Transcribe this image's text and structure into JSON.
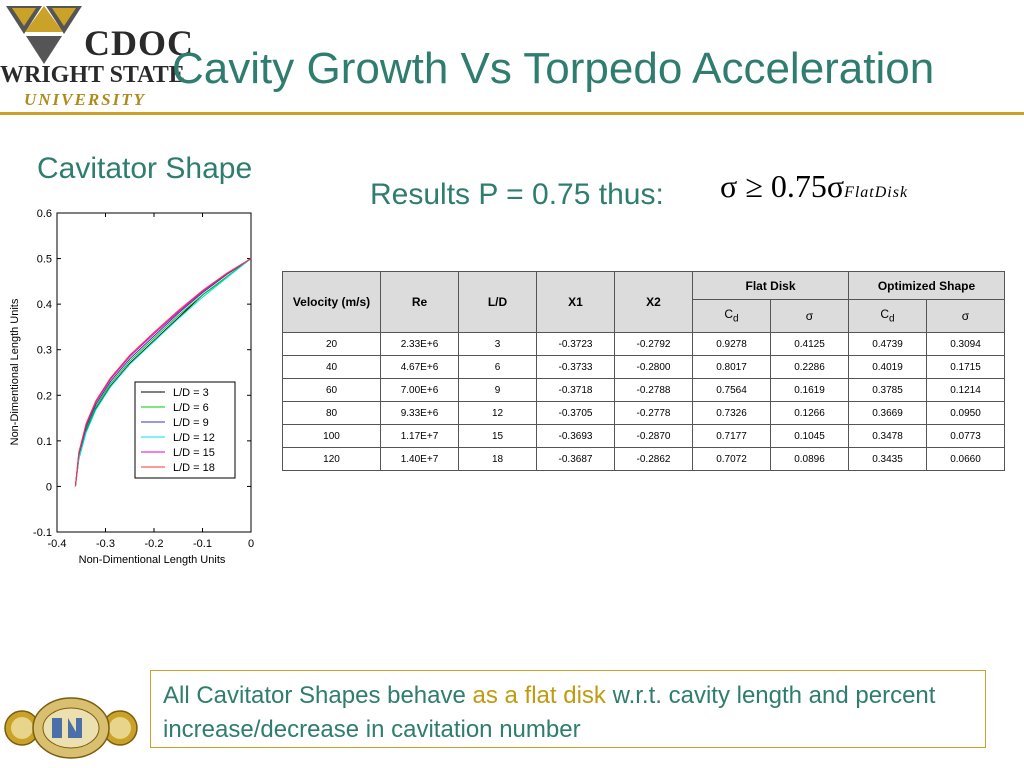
{
  "header": {
    "logo_top": "CDOC",
    "logo_middle": "WRIGHT STATE",
    "logo_bottom": "UNIVERSITY",
    "title": "Cavity Growth Vs Torpedo Acceleration"
  },
  "left": {
    "subhead": "Cavitator Shape"
  },
  "results": {
    "label": "Results P = 0.75 thus:",
    "formula_main": "σ  ≥  0.75σ",
    "formula_sub": "FlatDisk"
  },
  "table": {
    "headers": {
      "velocity": "Velocity (m/s)",
      "re": "Re",
      "ld": "L/D",
      "x1": "X1",
      "x2": "X2",
      "flat_disk": "Flat Disk",
      "optimized": "Optimized Shape",
      "cd_main": "C",
      "cd_sub": "d",
      "sigma": "σ"
    },
    "rows": [
      [
        "20",
        "2.33E+6",
        "3",
        "-0.3723",
        "-0.2792",
        "0.9278",
        "0.4125",
        "0.4739",
        "0.3094"
      ],
      [
        "40",
        "4.67E+6",
        "6",
        "-0.3733",
        "-0.2800",
        "0.8017",
        "0.2286",
        "0.4019",
        "0.1715"
      ],
      [
        "60",
        "7.00E+6",
        "9",
        "-0.3718",
        "-0.2788",
        "0.7564",
        "0.1619",
        "0.3785",
        "0.1214"
      ],
      [
        "80",
        "9.33E+6",
        "12",
        "-0.3705",
        "-0.2778",
        "0.7326",
        "0.1266",
        "0.3669",
        "0.0950"
      ],
      [
        "100",
        "1.17E+7",
        "15",
        "-0.3693",
        "-0.2870",
        "0.7177",
        "0.1045",
        "0.3478",
        "0.0773"
      ],
      [
        "120",
        "1.40E+7",
        "18",
        "-0.3687",
        "-0.2862",
        "0.7072",
        "0.0896",
        "0.3435",
        "0.0660"
      ]
    ]
  },
  "callout": {
    "part1": "All Cavitator Shapes behave ",
    "highlight": "as a flat disk",
    "part2": " w.r.t. cavity length and percent increase/decrease in cavitation number"
  },
  "colors": {
    "title": "#2e7d6e",
    "accent_rule": "#c9a227",
    "highlight": "#c09a10"
  },
  "chart_data": {
    "type": "line",
    "title": "",
    "xlabel": "Non-Dimentional Length Units",
    "ylabel": "Non-Dimentional Length Units",
    "xlim": [
      -0.4,
      0
    ],
    "ylim": [
      -0.1,
      0.6
    ],
    "x_ticks": [
      "-0.4",
      "-0.3",
      "-0.2",
      "-0.1",
      "0"
    ],
    "y_ticks": [
      "-0.1",
      "0",
      "0.1",
      "0.2",
      "0.3",
      "0.4",
      "0.5",
      "0.6"
    ],
    "legend_position": "bottom-right",
    "series": [
      {
        "name": "L/D = 3",
        "color": "#000000",
        "x": [
          -0.362,
          -0.355,
          -0.34,
          -0.32,
          -0.29,
          -0.25,
          -0.2,
          -0.15,
          -0.1,
          -0.05,
          0
        ],
        "y": [
          0.0,
          0.06,
          0.12,
          0.17,
          0.22,
          0.27,
          0.32,
          0.37,
          0.42,
          0.46,
          0.5
        ]
      },
      {
        "name": "L/D = 6",
        "color": "#00cc00",
        "x": [
          -0.362,
          -0.355,
          -0.34,
          -0.32,
          -0.29,
          -0.25,
          -0.2,
          -0.15,
          -0.1,
          -0.05,
          0
        ],
        "y": [
          0.0,
          0.065,
          0.125,
          0.175,
          0.225,
          0.275,
          0.325,
          0.375,
          0.42,
          0.46,
          0.5
        ]
      },
      {
        "name": "L/D = 9",
        "color": "#3333cc",
        "x": [
          -0.362,
          -0.355,
          -0.34,
          -0.32,
          -0.29,
          -0.25,
          -0.2,
          -0.15,
          -0.1,
          -0.05,
          0
        ],
        "y": [
          0.0,
          0.07,
          0.13,
          0.18,
          0.23,
          0.28,
          0.33,
          0.38,
          0.425,
          0.465,
          0.5
        ]
      },
      {
        "name": "L/D = 12",
        "color": "#00e5e5",
        "x": [
          -0.362,
          -0.355,
          -0.34,
          -0.32,
          -0.29,
          -0.25,
          -0.2,
          -0.15,
          -0.1,
          -0.05,
          0
        ],
        "y": [
          0.0,
          0.06,
          0.118,
          0.168,
          0.218,
          0.268,
          0.318,
          0.368,
          0.415,
          0.458,
          0.5
        ]
      },
      {
        "name": "L/D = 15",
        "color": "#e000e0",
        "x": [
          -0.362,
          -0.355,
          -0.34,
          -0.32,
          -0.29,
          -0.25,
          -0.2,
          -0.15,
          -0.1,
          -0.05,
          0
        ],
        "y": [
          0.0,
          0.072,
          0.135,
          0.185,
          0.235,
          0.285,
          0.335,
          0.383,
          0.428,
          0.467,
          0.5
        ]
      },
      {
        "name": "L/D = 18",
        "color": "#ff3333",
        "x": [
          -0.362,
          -0.355,
          -0.34,
          -0.32,
          -0.29,
          -0.25,
          -0.2,
          -0.15,
          -0.1,
          -0.05,
          0
        ],
        "y": [
          0.0,
          0.075,
          0.138,
          0.188,
          0.238,
          0.288,
          0.338,
          0.386,
          0.43,
          0.468,
          0.5
        ]
      }
    ]
  }
}
